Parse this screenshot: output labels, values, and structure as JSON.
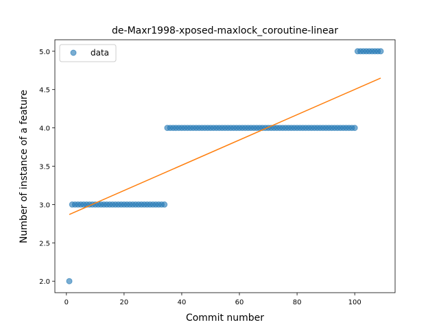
{
  "chart_data": {
    "type": "scatter",
    "title": "de-Maxr1998-xposed-maxlock_coroutine-linear",
    "xlabel": "Commit number",
    "ylabel": "Number of instance of a feature",
    "xlim": [
      -4,
      114
    ],
    "ylim": [
      1.85,
      5.15
    ],
    "xticks": [
      0,
      20,
      40,
      60,
      80,
      100
    ],
    "yticks": [
      2.0,
      2.5,
      3.0,
      3.5,
      4.0,
      4.5,
      5.0
    ],
    "xtick_labels": [
      "0",
      "20",
      "40",
      "60",
      "80",
      "100"
    ],
    "ytick_labels": [
      "2.0",
      "2.5",
      "3.0",
      "3.5",
      "4.0",
      "4.5",
      "5.0"
    ],
    "grid": false,
    "legend": {
      "position": "top-left",
      "entries": [
        "data"
      ]
    },
    "colors": {
      "data": "#1f77b4",
      "fit": "#ff7f0e"
    },
    "series": [
      {
        "name": "data",
        "kind": "scatter",
        "segments": [
          {
            "x_from": 1,
            "x_to": 1,
            "y": 2
          },
          {
            "x_from": 2,
            "x_to": 34,
            "y": 3
          },
          {
            "x_from": 35,
            "x_to": 100,
            "y": 4
          },
          {
            "x_from": 101,
            "x_to": 109,
            "y": 5
          }
        ]
      },
      {
        "kind": "line",
        "x": [
          1,
          109
        ],
        "y": [
          2.87,
          4.65
        ]
      }
    ]
  }
}
